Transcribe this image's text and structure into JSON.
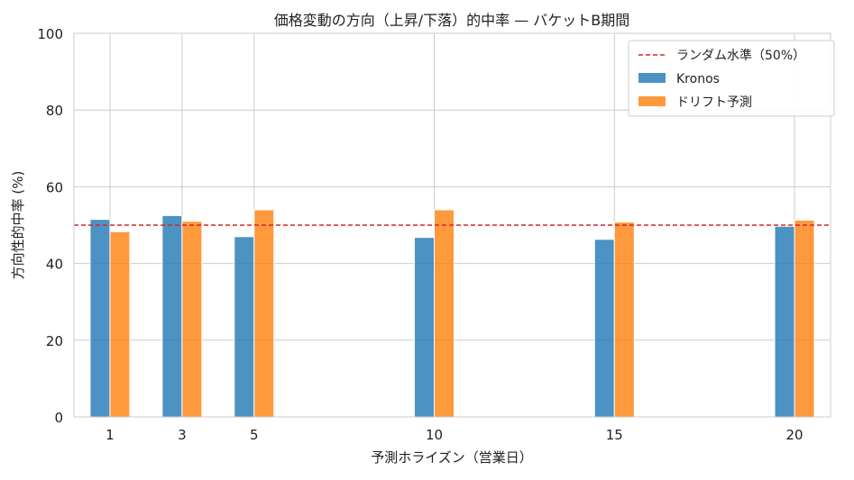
{
  "chart_data": {
    "type": "bar",
    "title": "価格変動の方向（上昇/下落）的中率 — バケットB期間",
    "xlabel": "予測ホライズン（営業日）",
    "ylabel": "方向性的中率 (%)",
    "x": [
      1,
      3,
      5,
      10,
      15,
      20
    ],
    "x_tick_labels": [
      "1",
      "3",
      "5",
      "10",
      "15",
      "20"
    ],
    "xlim": [
      0,
      21
    ],
    "ylim": [
      0,
      100
    ],
    "y_ticks": [
      0,
      20,
      40,
      60,
      80,
      100
    ],
    "y_tick_labels": [
      "0",
      "20",
      "40",
      "60",
      "80",
      "100"
    ],
    "grid": true,
    "legend_placement": "top-right",
    "series": [
      {
        "name": "Kronos",
        "color": "#1f77b4",
        "values": [
          51.5,
          52.5,
          47.0,
          46.8,
          46.3,
          49.7
        ]
      },
      {
        "name": "ドリフト予測",
        "color": "#ff7f0e",
        "values": [
          48.3,
          51.0,
          54.0,
          54.0,
          50.8,
          51.3
        ]
      }
    ],
    "reference_line": {
      "name": "ランダム水準（50%）",
      "y": 50,
      "color": "#d62728",
      "style": "dashed"
    }
  }
}
